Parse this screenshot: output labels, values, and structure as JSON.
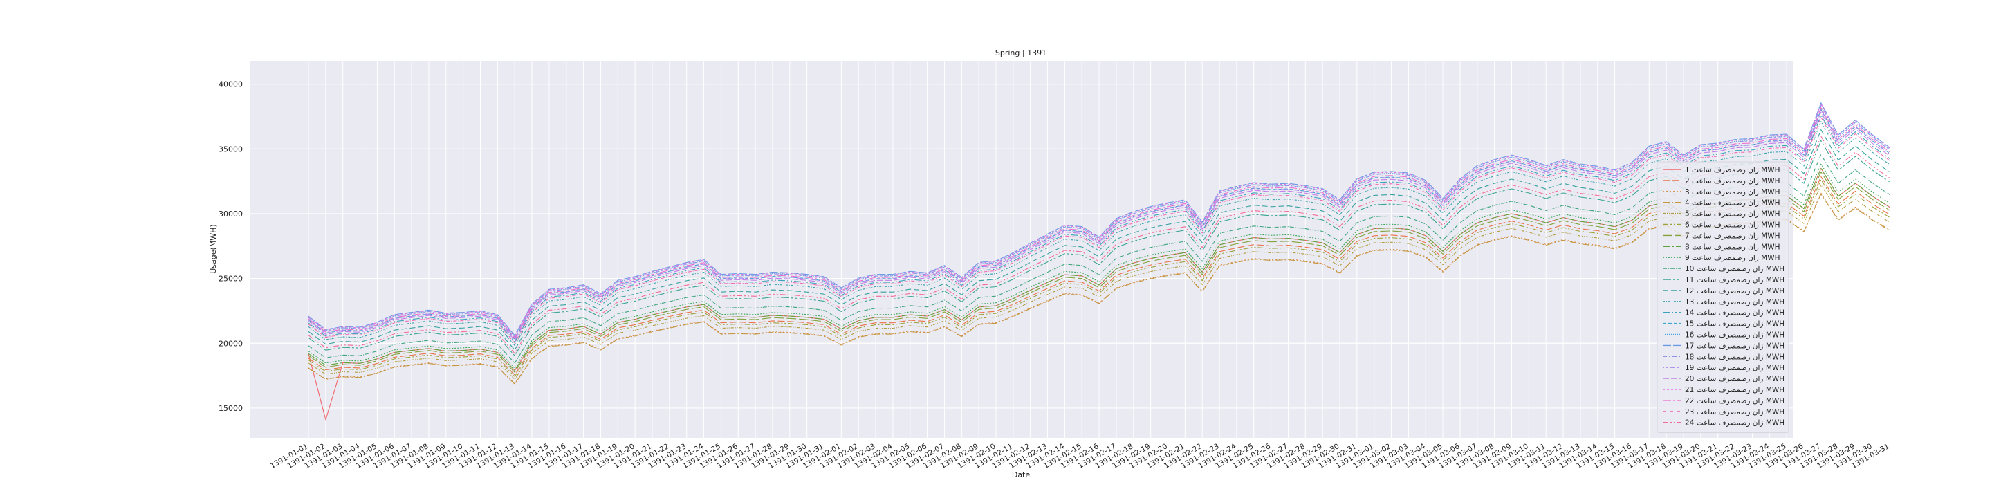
{
  "chart_data": {
    "type": "line",
    "title": "Spring | 1391",
    "xlabel": "Date",
    "ylabel": "Usage(MWH)",
    "ylim": [
      12700,
      41800
    ],
    "yticks": [
      15000,
      20000,
      25000,
      30000,
      35000,
      40000
    ],
    "grid": true,
    "legend_position": "right",
    "x": [
      "1391-01-01",
      "1391-01-02",
      "1391-01-03",
      "1391-01-04",
      "1391-01-05",
      "1391-01-06",
      "1391-01-07",
      "1391-01-08",
      "1391-01-09",
      "1391-01-10",
      "1391-01-11",
      "1391-01-12",
      "1391-01-13",
      "1391-01-14",
      "1391-01-15",
      "1391-01-16",
      "1391-01-17",
      "1391-01-18",
      "1391-01-19",
      "1391-01-20",
      "1391-01-21",
      "1391-01-22",
      "1391-01-23",
      "1391-01-24",
      "1391-01-25",
      "1391-01-26",
      "1391-01-27",
      "1391-01-28",
      "1391-01-29",
      "1391-01-30",
      "1391-01-31",
      "1391-02-01",
      "1391-02-02",
      "1391-02-03",
      "1391-02-04",
      "1391-02-05",
      "1391-02-06",
      "1391-02-07",
      "1391-02-08",
      "1391-02-09",
      "1391-02-10",
      "1391-02-11",
      "1391-02-12",
      "1391-02-13",
      "1391-02-14",
      "1391-02-15",
      "1391-02-16",
      "1391-02-17",
      "1391-02-18",
      "1391-02-19",
      "1391-02-20",
      "1391-02-21",
      "1391-02-22",
      "1391-02-23",
      "1391-02-24",
      "1391-02-25",
      "1391-02-26",
      "1391-02-27",
      "1391-02-28",
      "1391-02-29",
      "1391-02-30",
      "1391-02-31",
      "1391-03-01",
      "1391-03-02",
      "1391-03-03",
      "1391-03-04",
      "1391-03-05",
      "1391-03-06",
      "1391-03-07",
      "1391-03-08",
      "1391-03-09",
      "1391-03-10",
      "1391-03-11",
      "1391-03-12",
      "1391-03-13",
      "1391-03-14",
      "1391-03-15",
      "1391-03-16",
      "1391-03-17",
      "1391-03-18",
      "1391-03-19",
      "1391-03-20",
      "1391-03-21",
      "1391-03-22",
      "1391-03-23",
      "1391-03-24",
      "1391-03-25",
      "1391-03-26",
      "1391-03-27",
      "1391-03-28",
      "1391-03-29",
      "1391-03-30",
      "1391-03-31"
    ],
    "base": [
      19200,
      18300,
      18500,
      18450,
      18800,
      19300,
      19450,
      19600,
      19400,
      19450,
      19550,
      19300,
      17900,
      20000,
      21000,
      21100,
      21300,
      20700,
      21600,
      21850,
      22200,
      22500,
      22800,
      23000,
      22000,
      22050,
      22000,
      22150,
      22100,
      22000,
      21850,
      21100,
      21750,
      22000,
      22000,
      22200,
      22100,
      22600,
      21800,
      22800,
      22900,
      23450,
      24100,
      24700,
      25300,
      25200,
      24500,
      25750,
      26200,
      26550,
      26800,
      27000,
      25500,
      27600,
      27900,
      28150,
      28050,
      28100,
      27950,
      27750,
      27000,
      28400,
      28850,
      28900,
      28800,
      28300,
      27100,
      28400,
      29300,
      29700,
      30000,
      29700,
      29300,
      29700,
      29400,
      29250,
      29000,
      29500,
      30600,
      30900,
      30000,
      30700,
      30800,
      31050,
      31100,
      31350,
      31400,
      30400,
      33500,
      31350,
      32350,
      31350,
      30500
    ],
    "profile": [
      1.0,
      0.981,
      0.943,
      0.941,
      0.962,
      0.974,
      0.992,
      1.0,
      1.01,
      1.032,
      1.064,
      1.089,
      1.108,
      1.123,
      1.136,
      1.146,
      1.151,
      1.145,
      1.135,
      1.13,
      1.149,
      1.14,
      1.118,
      1.074
    ],
    "series": [
      {
        "name": "زان رصمصرف ساعت 1 MWH",
        "color": "#f2666d",
        "dash": ""
      },
      {
        "name": "زان رصمصرف ساعت 2 MWH",
        "color": "#ea7247",
        "dash": "10,4"
      },
      {
        "name": "زان رصمصرف ساعت 3 MWH",
        "color": "#d98b45",
        "dash": "2,3"
      },
      {
        "name": "زان رصمصرف ساعت 4 MWH",
        "color": "#c4963f",
        "dash": "10,3,2,3"
      },
      {
        "name": "زان رصمصرف ساعت 5 MWH",
        "color": "#b09b3b",
        "dash": "4,2,1,2,1,2"
      },
      {
        "name": "زان رصمصرف ساعت 6 MWH",
        "color": "#9ba33a",
        "dash": "8,3,2,3,2,3"
      },
      {
        "name": "زان رصمصرف ساعت 7 MWH",
        "color": "#84a23a",
        "dash": "14,4"
      },
      {
        "name": "زان رصمصرف ساعت 8 MWH",
        "color": "#5fa33a",
        "dash": "10,3,3,3"
      },
      {
        "name": "زان رصمصرف ساعت 9 MWH",
        "color": "#3aa55a",
        "dash": "2,2"
      },
      {
        "name": "زان رصمصرف ساعت 10 MWH",
        "color": "#3aa57c",
        "dash": "6,2,1,2"
      },
      {
        "name": "زان رصمصرف ساعت 11 MWH",
        "color": "#39a492",
        "dash": "12,3,3,3,3,3"
      },
      {
        "name": "زان رصمصرف ساعت 12 MWH",
        "color": "#38a2a0",
        "dash": "8,4"
      },
      {
        "name": "زان رصمصرف ساعت 13 MWH",
        "color": "#39a2ad",
        "dash": "3,2,1,2"
      },
      {
        "name": "زان رصمصرف ساعت 14 MWH",
        "color": "#3ba4bc",
        "dash": "10,3,2,3,2,3"
      },
      {
        "name": "زان رصمصرف ساعت 15 MWH",
        "color": "#3ea6cf",
        "dash": "5,3"
      },
      {
        "name": "زان رصمصرف ساعت 16 MWH",
        "color": "#48a3dc",
        "dash": "1,2"
      },
      {
        "name": "زان رصمصرف ساعت 17 MWH",
        "color": "#6c9ce6",
        "dash": "12,3"
      },
      {
        "name": "زان رصمصرف ساعت 18 MWH",
        "color": "#8e92ea",
        "dash": "6,3,2,3"
      },
      {
        "name": "زان رصمصرف ساعت 19 MWH",
        "color": "#a989ec",
        "dash": "2,3,2,3,8,3"
      },
      {
        "name": "زان رصمصرف ساعت 20 MWH",
        "color": "#c47fe8",
        "dash": "9,3"
      },
      {
        "name": "زان رصمصرف ساعت 21 MWH",
        "color": "#dc74e1",
        "dash": "3,3"
      },
      {
        "name": "زان رصمصرف ساعت 22 MWH",
        "color": "#ec6fce",
        "dash": "12,3,2,3"
      },
      {
        "name": "زان رصمصرف ساعت 23 MWH",
        "color": "#f26cb4",
        "dash": "5,2,1,2"
      },
      {
        "name": "زان رصمصرف ساعت 24 MWH",
        "color": "#f46a98",
        "dash": "8,3,2,3,2,3"
      }
    ],
    "overrides": [
      {
        "series": 0,
        "index": 1,
        "value": 14100
      }
    ]
  }
}
